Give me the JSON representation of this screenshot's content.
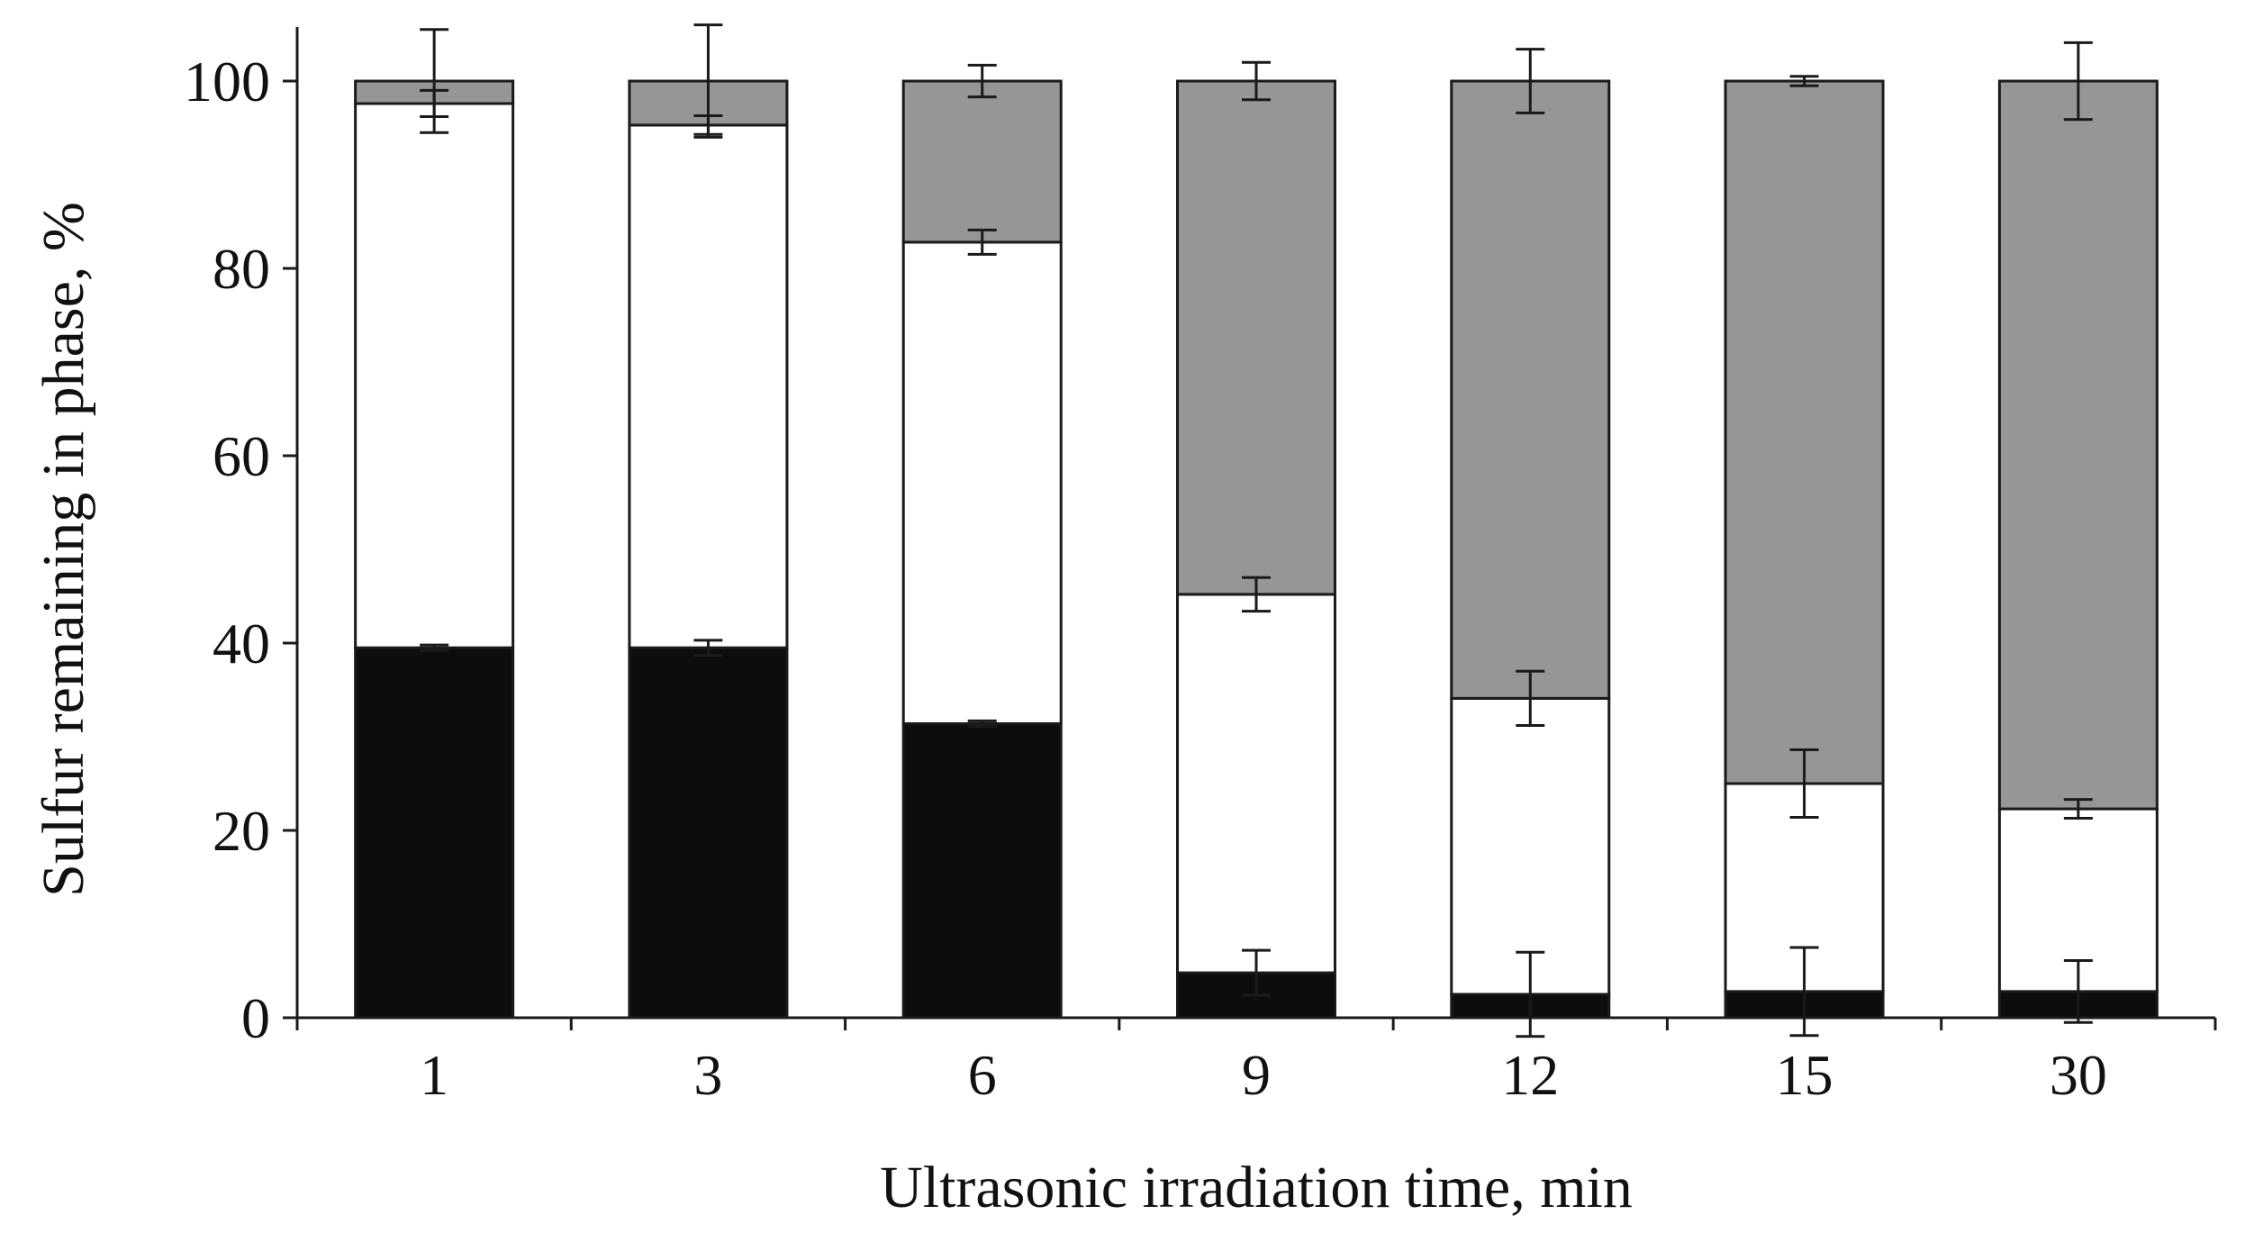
{
  "chart_data": {
    "type": "bar",
    "stacked": true,
    "xlabel": "Ultrasonic irradiation time, min",
    "ylabel": "Sulfur remaining in phase, %",
    "ylim": [
      0,
      100
    ],
    "yticks": [
      0,
      20,
      40,
      60,
      80,
      100
    ],
    "ytick_labels": [
      "0",
      "20",
      "40",
      "60",
      "80",
      "100"
    ],
    "categories": [
      "1",
      "3",
      "6",
      "9",
      "12",
      "15",
      "30"
    ],
    "legend": "none",
    "grid": false,
    "series": [
      {
        "name": "bottom segment",
        "color": "#0c0e0c",
        "values": [
          39.5,
          39.5,
          31.4,
          4.8,
          2.5,
          2.8,
          2.8
        ],
        "errors": [
          0.3,
          0.8,
          0.3,
          2.4,
          4.5,
          4.7,
          3.3
        ]
      },
      {
        "name": "middle segment",
        "color": "#ffffff",
        "values": [
          58.1,
          55.8,
          51.4,
          40.4,
          31.6,
          22.2,
          19.5
        ],
        "errors": [
          1.4,
          1.0,
          1.3,
          1.8,
          2.9,
          3.6,
          1.0
        ]
      },
      {
        "name": "top segment",
        "color": "#959695",
        "values": [
          2.4,
          4.7,
          17.2,
          54.8,
          65.9,
          75.0,
          77.7
        ],
        "errors": [
          5.5,
          6.0,
          1.7,
          2.0,
          3.4,
          0.5,
          4.1
        ]
      }
    ]
  }
}
